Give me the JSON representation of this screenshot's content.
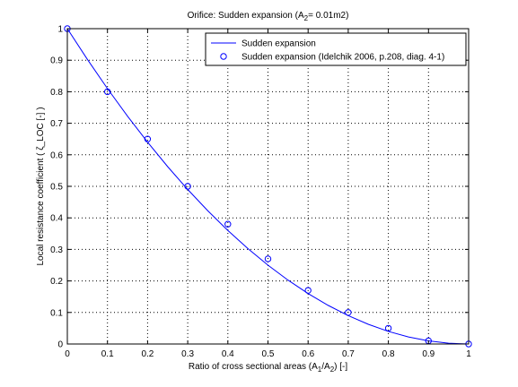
{
  "chart_data": {
    "type": "line",
    "title": {
      "prefix": "Orifice: Sudden expansion (A",
      "sub": "2",
      "suffix": "= 0.01m2)"
    },
    "xlabel": {
      "prefix": "Ratio of cross sectional areas (A",
      "sub1": "1",
      "mid": "/A",
      "sub2": "2",
      "suffix": ") [-]"
    },
    "ylabel": "Local resistance coefficient ( ζ_LOC [-] )",
    "xlim": [
      0,
      1
    ],
    "ylim": [
      0,
      1
    ],
    "x_ticks": [
      "0",
      "0.1",
      "0.2",
      "0.3",
      "0.4",
      "0.5",
      "0.6",
      "0.7",
      "0.8",
      "0.9",
      "1"
    ],
    "y_ticks": [
      "0",
      "0.1",
      "0.2",
      "0.3",
      "0.4",
      "0.5",
      "0.6",
      "0.7",
      "0.8",
      "0.9",
      "1"
    ],
    "grid": true,
    "legend_position": "top-right",
    "series": [
      {
        "name": "Sudden expansion",
        "style": "line",
        "color": "#0000ff",
        "formula": "(1 - x)^2",
        "x": [
          0,
          0.05,
          0.1,
          0.15,
          0.2,
          0.25,
          0.3,
          0.35,
          0.4,
          0.45,
          0.5,
          0.55,
          0.6,
          0.65,
          0.7,
          0.75,
          0.8,
          0.85,
          0.9,
          0.95,
          1
        ],
        "y": [
          1,
          0.9025,
          0.81,
          0.7225,
          0.64,
          0.5625,
          0.49,
          0.4225,
          0.36,
          0.3025,
          0.25,
          0.2025,
          0.16,
          0.1225,
          0.09,
          0.0625,
          0.04,
          0.0225,
          0.01,
          0.0025,
          0
        ]
      },
      {
        "name": "Sudden expansion (Idelchik 2006, p.208, diag. 4-1)",
        "style": "marker-circle",
        "color": "#0000ff",
        "x": [
          0,
          0.1,
          0.2,
          0.3,
          0.4,
          0.5,
          0.6,
          0.7,
          0.8,
          0.9,
          1
        ],
        "y": [
          1,
          0.8,
          0.65,
          0.5,
          0.38,
          0.27,
          0.17,
          0.1,
          0.05,
          0.01,
          0
        ]
      }
    ]
  }
}
